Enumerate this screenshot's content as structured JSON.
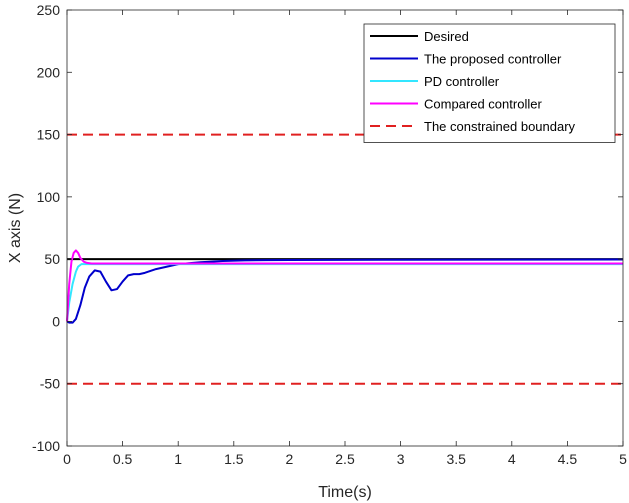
{
  "chart_data": {
    "type": "line",
    "title": "",
    "xlabel": "Time(s)",
    "ylabel": "X axis (N)",
    "xlim": [
      0,
      5
    ],
    "ylim": [
      -100,
      250
    ],
    "xticks": [
      0,
      0.5,
      1,
      1.5,
      2,
      2.5,
      3,
      3.5,
      4,
      4.5,
      5
    ],
    "xtick_labels": [
      "0",
      "0.5",
      "1",
      "1.5",
      "2",
      "2.5",
      "3",
      "3.5",
      "4",
      "4.5",
      "5"
    ],
    "yticks": [
      -100,
      -50,
      0,
      50,
      100,
      150,
      200,
      250
    ],
    "ytick_labels": [
      "-100",
      "-50",
      "0",
      "50",
      "100",
      "150",
      "200",
      "250"
    ],
    "grid": false,
    "legend_position": "top-right",
    "series": [
      {
        "name": "Desired",
        "color": "#000000",
        "dash": "solid",
        "x": [
          0,
          5
        ],
        "y": [
          50,
          50
        ]
      },
      {
        "name": "The proposed controller",
        "color": "#0000cc",
        "dash": "solid",
        "x": [
          0,
          0.02,
          0.05,
          0.08,
          0.12,
          0.16,
          0.2,
          0.25,
          0.3,
          0.35,
          0.4,
          0.45,
          0.5,
          0.55,
          0.6,
          0.65,
          0.7,
          0.8,
          0.9,
          1.0,
          1.2,
          1.4,
          1.6,
          1.8,
          2.0,
          3.0,
          4.0,
          5.0
        ],
        "y": [
          0,
          -1,
          -1,
          2,
          13,
          27,
          36,
          41,
          40,
          32,
          25,
          26,
          32,
          37,
          38,
          38,
          39,
          42,
          44,
          46,
          47.5,
          48.5,
          49,
          49.2,
          49.3,
          49.5,
          49.6,
          49.7
        ]
      },
      {
        "name": "PD controller",
        "color": "#33e6ff",
        "dash": "solid",
        "x": [
          0,
          0.02,
          0.05,
          0.08,
          0.1,
          0.13,
          0.16,
          0.2,
          0.3,
          0.5,
          1.0,
          2.0,
          5.0
        ],
        "y": [
          0,
          15,
          30,
          40,
          44,
          46,
          46,
          46,
          46,
          46,
          46,
          46,
          46
        ]
      },
      {
        "name": "Compared controller",
        "color": "#ff00ff",
        "dash": "solid",
        "x": [
          0,
          0.02,
          0.04,
          0.06,
          0.08,
          0.1,
          0.12,
          0.15,
          0.18,
          0.22,
          0.3,
          0.5,
          1.0,
          2.0,
          5.0
        ],
        "y": [
          0,
          30,
          48,
          55,
          57,
          55,
          51,
          48,
          47,
          46.5,
          46.5,
          46.5,
          46.5,
          46.5,
          46.5
        ]
      },
      {
        "name": "The constrained boundary",
        "color": "#e02020",
        "dash": "dashed",
        "x": [
          0,
          5
        ],
        "y": [
          150,
          150
        ]
      },
      {
        "name": "The constrained boundary (lower)",
        "legend": false,
        "color": "#e02020",
        "dash": "dashed",
        "x": [
          0,
          5
        ],
        "y": [
          -50,
          -50
        ]
      }
    ]
  }
}
